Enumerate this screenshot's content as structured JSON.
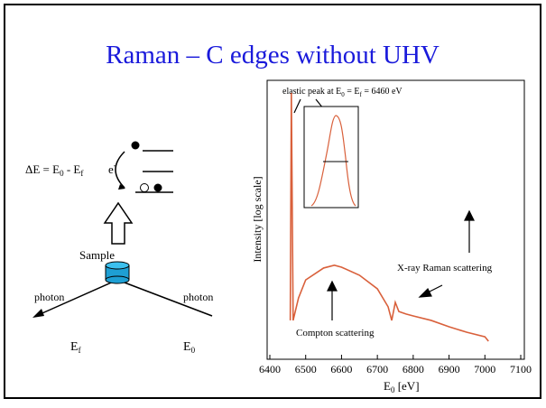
{
  "title": "Raman – C edges without UHV",
  "diagram": {
    "delta_e": [
      "ΔE = E",
      "0",
      " - E",
      "f"
    ],
    "electron": [
      "e",
      "-"
    ],
    "sample": "Sample",
    "photon_in": "photon",
    "photon_out": "photon",
    "e_f": [
      "E",
      "f"
    ],
    "e_0": [
      "E",
      "0"
    ]
  },
  "chart_data": {
    "type": "line",
    "color": "#d9603b",
    "x_label": [
      "E",
      "0",
      " [eV]"
    ],
    "y_label": "Intensity [log scale]",
    "annotations": {
      "elastic": [
        "elastic peak at E",
        "0",
        " = E",
        "f",
        " = 6460 eV"
      ],
      "compton": "Compton scattering",
      "raman": "X-ray Raman scattering"
    },
    "x": [
      6457,
      6460,
      6465,
      6480,
      6500,
      6550,
      6580,
      6600,
      6650,
      6700,
      6730,
      6740,
      6745,
      6750,
      6760,
      6780,
      6800,
      6850,
      6900,
      6950,
      7000,
      7010
    ],
    "values": [
      13.7,
      95.8,
      13.7,
      21.8,
      28.3,
      32.6,
      33.6,
      32.9,
      30,
      25.1,
      18.6,
      13.7,
      16.9,
      20.2,
      16.9,
      16,
      15.3,
      13.7,
      11.4,
      9.4,
      7.8,
      6.2
    ],
    "xlim": [
      6400,
      7100
    ],
    "ylim": [
      0,
      100
    ],
    "xticks": [
      6400,
      6500,
      6600,
      6700,
      6800,
      6900,
      7000,
      7100
    ],
    "log_y": true
  }
}
